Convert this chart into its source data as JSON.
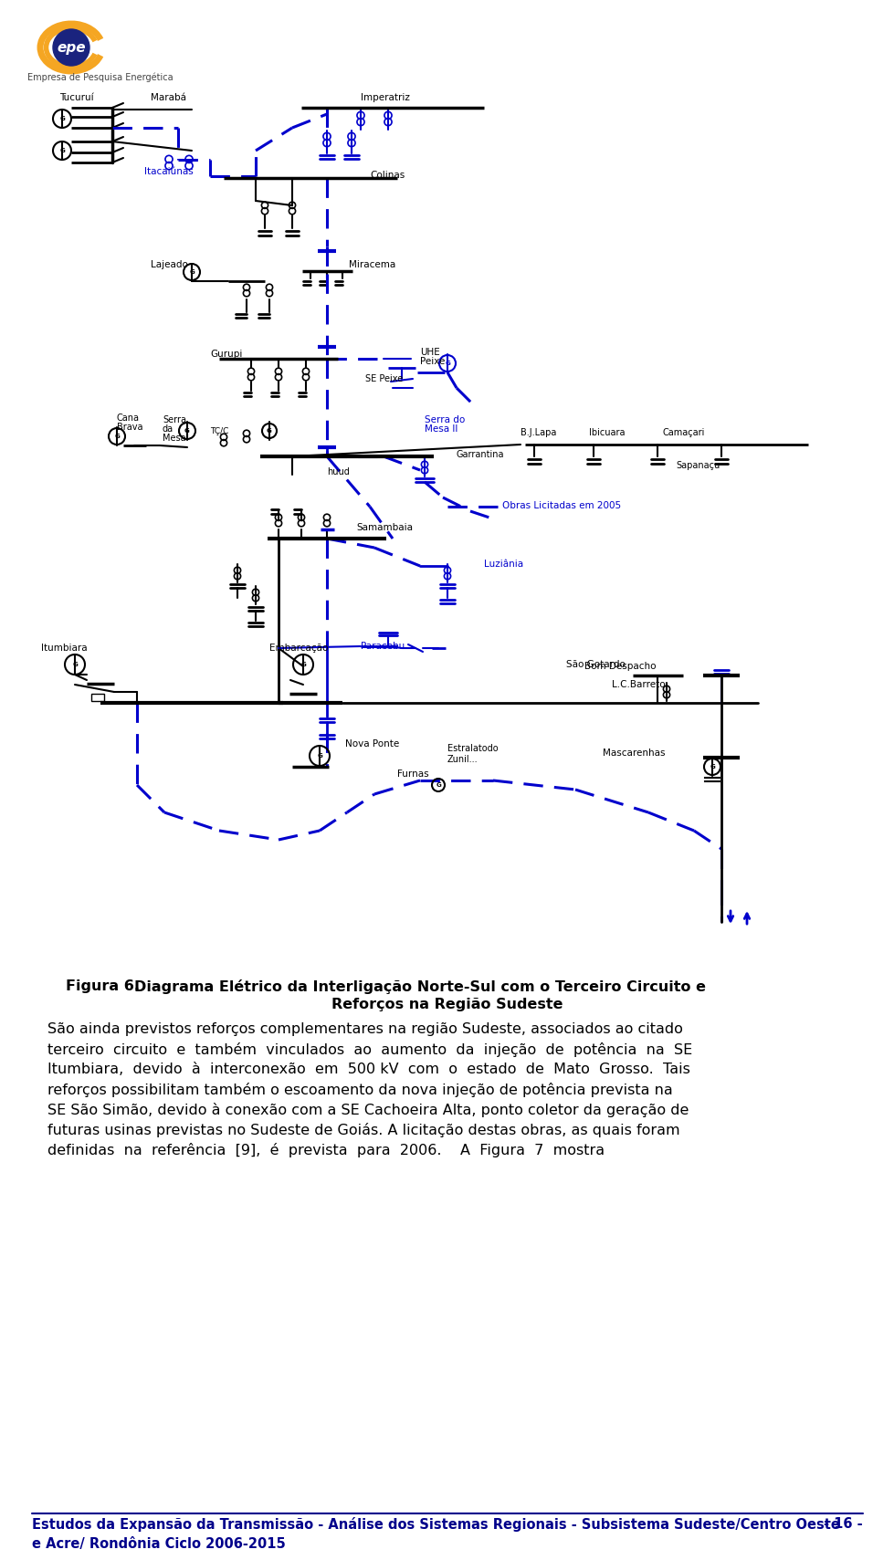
{
  "page_width": 9.6,
  "page_height": 16.76,
  "dpi": 100,
  "background_color": "#ffffff",
  "black": "#000000",
  "blue": "#0000CC",
  "dark_blue": "#00008B",
  "footer_text_left": "Estudos da Expansão da Transmissão - Análise dos Sistemas Regionais - Subsistema Sudeste/Centro Oeste\ne Acre/ Rondônia Ciclo 2006-2015",
  "footer_text_right": "- 16 -",
  "caption_line1": "Figura 6.    Diagrama Elétrico da Interligação Norte-Sul com o Terceiro Circuito e",
  "caption_line2": "Reforços na Região Sudeste",
  "body_lines": [
    "São ainda previstos reforços complementares na região Sudeste, associados ao citado",
    "terceiro  circuito  e  também  vinculados  ao  aumento  da  injeção  de  potência  na  SE",
    "Itumbiara,  devido  à  interconexão  em  500 kV  com  o  estado  de  Mato  Grosso.  Tais",
    "reforços possibilitam também o escoamento da nova injeção de potência prevista na",
    "SE São Simão, devido à conexão com a SE Cachoeira Alta, ponto coletor da geração de",
    "futuras usinas previstas no Sudeste de Goiás. A licitação destas obras, as quais foram",
    "definidas  na  referência  [9],  é  prevista  para  2006.    A  Figura  7  mostra"
  ]
}
